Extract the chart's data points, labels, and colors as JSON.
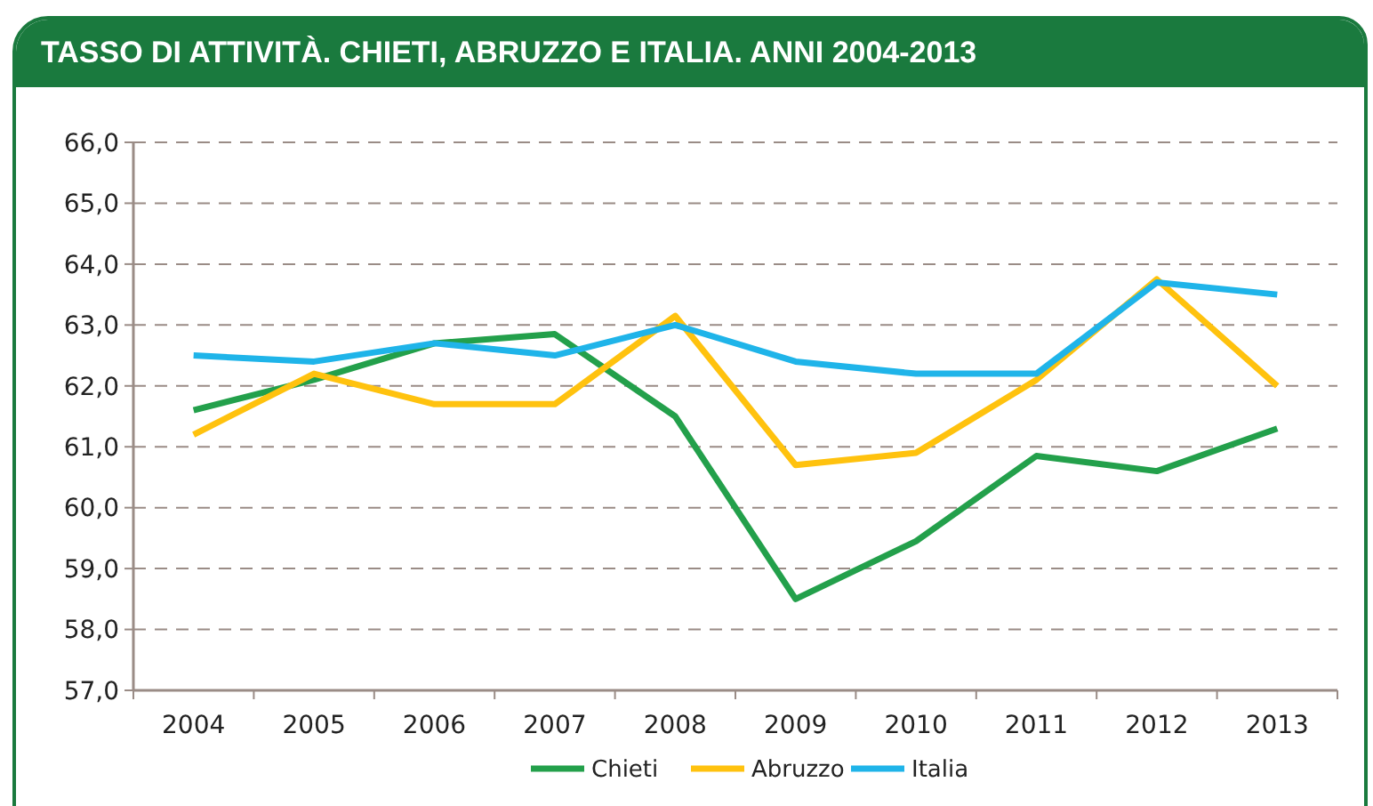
{
  "chart_data": {
    "type": "line",
    "title": "TASSO DI ATTIVITÀ. CHIETI, ABRUZZO E ITALIA. ANNI 2004-2013",
    "categories": [
      "2004",
      "2005",
      "2006",
      "2007",
      "2008",
      "2009",
      "2010",
      "2011",
      "2012",
      "2013"
    ],
    "series": [
      {
        "name": "Chieti",
        "color": "#23a04b",
        "values": [
          61.6,
          62.1,
          62.7,
          62.85,
          61.5,
          58.5,
          59.45,
          60.85,
          60.6,
          61.3
        ]
      },
      {
        "name": "Abruzzo",
        "color": "#ffc20e",
        "values": [
          61.2,
          62.2,
          61.7,
          61.7,
          63.15,
          60.7,
          60.9,
          62.1,
          63.75,
          62.0
        ]
      },
      {
        "name": "Italia",
        "color": "#1fb4e9",
        "values": [
          62.5,
          62.4,
          62.7,
          62.5,
          63.0,
          62.4,
          62.2,
          62.2,
          63.7,
          63.5
        ]
      }
    ],
    "ylim": [
      57,
      66
    ],
    "yticks": [
      {
        "value": 57,
        "label": "57,0"
      },
      {
        "value": 58,
        "label": "58,0"
      },
      {
        "value": 59,
        "label": "59,0"
      },
      {
        "value": 60,
        "label": "60,0"
      },
      {
        "value": 61,
        "label": "61,0"
      },
      {
        "value": 62,
        "label": "62,0"
      },
      {
        "value": 63,
        "label": "63,0"
      },
      {
        "value": 64,
        "label": "64,0"
      },
      {
        "value": 65,
        "label": "65,0"
      },
      {
        "value": 66,
        "label": "66,0"
      }
    ],
    "grid": "y",
    "legend": "bottom",
    "marker": "none",
    "line_style": "solid"
  }
}
